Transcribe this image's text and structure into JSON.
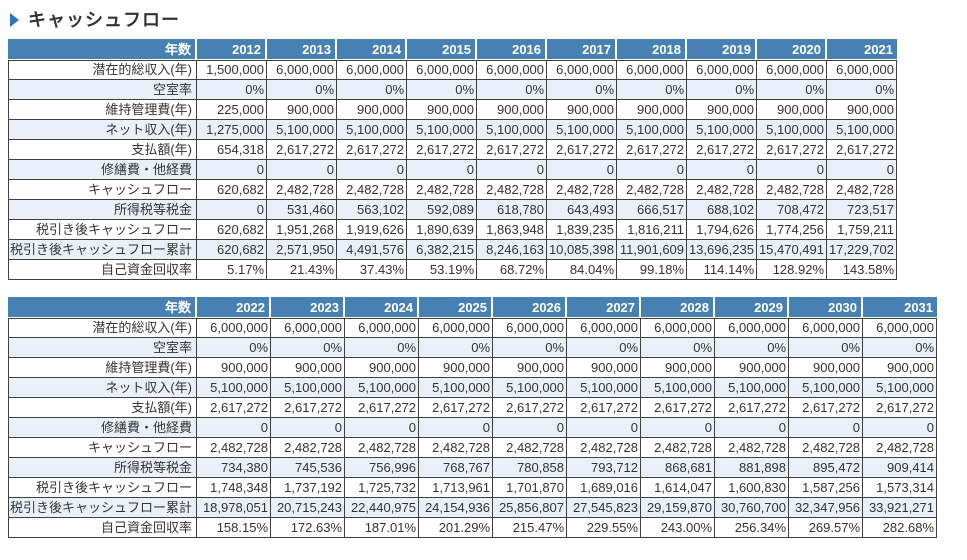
{
  "section": {
    "title": "キャッシュフロー"
  },
  "year_header_label": "年数",
  "colors": {
    "header_bg": "#4781B4",
    "header_text": "#FFFFFF",
    "stripe_bg": "#EAF0FA",
    "grid_border": "#3F3F3F",
    "title_text": "#333333",
    "accent": "#2E75B6",
    "cell_text": "#333333"
  },
  "tables": [
    {
      "name": "cashflow-2012-2021",
      "years": [
        "2012",
        "2013",
        "2014",
        "2015",
        "2016",
        "2017",
        "2018",
        "2019",
        "2020",
        "2021"
      ],
      "rows": [
        {
          "label": "潜在的総収入(年)",
          "values": [
            "1,500,000",
            "6,000,000",
            "6,000,000",
            "6,000,000",
            "6,000,000",
            "6,000,000",
            "6,000,000",
            "6,000,000",
            "6,000,000",
            "6,000,000"
          ]
        },
        {
          "label": "空室率",
          "values": [
            "0%",
            "0%",
            "0%",
            "0%",
            "0%",
            "0%",
            "0%",
            "0%",
            "0%",
            "0%"
          ]
        },
        {
          "label": "維持管理費(年)",
          "values": [
            "225,000",
            "900,000",
            "900,000",
            "900,000",
            "900,000",
            "900,000",
            "900,000",
            "900,000",
            "900,000",
            "900,000"
          ]
        },
        {
          "label": "ネット収入(年)",
          "values": [
            "1,275,000",
            "5,100,000",
            "5,100,000",
            "5,100,000",
            "5,100,000",
            "5,100,000",
            "5,100,000",
            "5,100,000",
            "5,100,000",
            "5,100,000"
          ]
        },
        {
          "label": "支払額(年)",
          "values": [
            "654,318",
            "2,617,272",
            "2,617,272",
            "2,617,272",
            "2,617,272",
            "2,617,272",
            "2,617,272",
            "2,617,272",
            "2,617,272",
            "2,617,272"
          ]
        },
        {
          "label": "修繕費・他経費",
          "values": [
            "0",
            "0",
            "0",
            "0",
            "0",
            "0",
            "0",
            "0",
            "0",
            "0"
          ]
        },
        {
          "label": "キャッシュフロー",
          "values": [
            "620,682",
            "2,482,728",
            "2,482,728",
            "2,482,728",
            "2,482,728",
            "2,482,728",
            "2,482,728",
            "2,482,728",
            "2,482,728",
            "2,482,728"
          ]
        },
        {
          "label": "所得税等税金",
          "values": [
            "0",
            "531,460",
            "563,102",
            "592,089",
            "618,780",
            "643,493",
            "666,517",
            "688,102",
            "708,472",
            "723,517"
          ]
        },
        {
          "label": "税引き後キャッシュフロー",
          "values": [
            "620,682",
            "1,951,268",
            "1,919,626",
            "1,890,639",
            "1,863,948",
            "1,839,235",
            "1,816,211",
            "1,794,626",
            "1,774,256",
            "1,759,211"
          ]
        },
        {
          "label": "税引き後キャッシュフロー累計",
          "values": [
            "620,682",
            "2,571,950",
            "4,491,576",
            "6,382,215",
            "8,246,163",
            "10,085,398",
            "11,901,609",
            "13,696,235",
            "15,470,491",
            "17,229,702"
          ]
        },
        {
          "label": "自己資金回収率",
          "values": [
            "5.17%",
            "21.43%",
            "37.43%",
            "53.19%",
            "68.72%",
            "84.04%",
            "99.18%",
            "114.14%",
            "128.92%",
            "143.58%"
          ]
        }
      ]
    },
    {
      "name": "cashflow-2022-2031",
      "years": [
        "2022",
        "2023",
        "2024",
        "2025",
        "2026",
        "2027",
        "2028",
        "2029",
        "2030",
        "2031"
      ],
      "rows": [
        {
          "label": "潜在的総収入(年)",
          "values": [
            "6,000,000",
            "6,000,000",
            "6,000,000",
            "6,000,000",
            "6,000,000",
            "6,000,000",
            "6,000,000",
            "6,000,000",
            "6,000,000",
            "6,000,000"
          ]
        },
        {
          "label": "空室率",
          "values": [
            "0%",
            "0%",
            "0%",
            "0%",
            "0%",
            "0%",
            "0%",
            "0%",
            "0%",
            "0%"
          ]
        },
        {
          "label": "維持管理費(年)",
          "values": [
            "900,000",
            "900,000",
            "900,000",
            "900,000",
            "900,000",
            "900,000",
            "900,000",
            "900,000",
            "900,000",
            "900,000"
          ]
        },
        {
          "label": "ネット収入(年)",
          "values": [
            "5,100,000",
            "5,100,000",
            "5,100,000",
            "5,100,000",
            "5,100,000",
            "5,100,000",
            "5,100,000",
            "5,100,000",
            "5,100,000",
            "5,100,000"
          ]
        },
        {
          "label": "支払額(年)",
          "values": [
            "2,617,272",
            "2,617,272",
            "2,617,272",
            "2,617,272",
            "2,617,272",
            "2,617,272",
            "2,617,272",
            "2,617,272",
            "2,617,272",
            "2,617,272"
          ]
        },
        {
          "label": "修繕費・他経費",
          "values": [
            "0",
            "0",
            "0",
            "0",
            "0",
            "0",
            "0",
            "0",
            "0",
            "0"
          ]
        },
        {
          "label": "キャッシュフロー",
          "values": [
            "2,482,728",
            "2,482,728",
            "2,482,728",
            "2,482,728",
            "2,482,728",
            "2,482,728",
            "2,482,728",
            "2,482,728",
            "2,482,728",
            "2,482,728"
          ]
        },
        {
          "label": "所得税等税金",
          "values": [
            "734,380",
            "745,536",
            "756,996",
            "768,767",
            "780,858",
            "793,712",
            "868,681",
            "881,898",
            "895,472",
            "909,414"
          ]
        },
        {
          "label": "税引き後キャッシュフロー",
          "values": [
            "1,748,348",
            "1,737,192",
            "1,725,732",
            "1,713,961",
            "1,701,870",
            "1,689,016",
            "1,614,047",
            "1,600,830",
            "1,587,256",
            "1,573,314"
          ]
        },
        {
          "label": "税引き後キャッシュフロー累計",
          "values": [
            "18,978,051",
            "20,715,243",
            "22,440,975",
            "24,154,936",
            "25,856,807",
            "27,545,823",
            "29,159,870",
            "30,760,700",
            "32,347,956",
            "33,921,271"
          ]
        },
        {
          "label": "自己資金回収率",
          "values": [
            "158.15%",
            "172.63%",
            "187.01%",
            "201.29%",
            "215.47%",
            "229.55%",
            "243.00%",
            "256.34%",
            "269.57%",
            "282.68%"
          ]
        }
      ]
    }
  ]
}
